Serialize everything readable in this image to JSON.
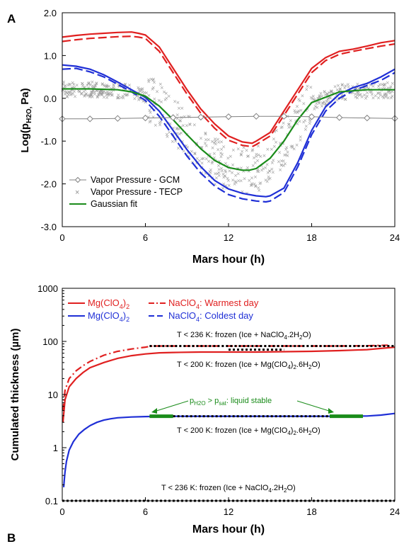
{
  "chart_data": [
    {
      "panel": "A",
      "type": "line",
      "xlabel": "Mars hour (h)",
      "ylabel_main": "Log(p",
      "ylabel_sub": "H2O, ",
      "ylabel_end": "Pa)",
      "xlim": [
        0,
        24
      ],
      "ylim": [
        -3,
        2
      ],
      "xticks": [
        0,
        6,
        12,
        18,
        24
      ],
      "yticks": [
        2,
        1,
        0,
        -1,
        -2,
        -3
      ],
      "ytick_labels": [
        "2.0",
        "1.0",
        "0.0",
        "-1.0",
        "-2.0",
        "-3.0"
      ],
      "legend": [
        "Vapor Pressure - GCM",
        "Vapor Pressure - TECP",
        "Gaussian fit"
      ],
      "series": [
        {
          "color": "#e02020",
          "dash": "solid",
          "x": [
            0,
            1,
            2,
            3,
            4,
            5,
            5.5,
            6,
            7,
            8,
            9,
            10,
            11,
            12,
            13,
            13.7,
            14,
            15,
            16,
            17,
            18,
            19,
            20,
            21,
            22,
            23,
            24
          ],
          "y": [
            1.43,
            1.47,
            1.5,
            1.52,
            1.54,
            1.55,
            1.52,
            1.48,
            1.2,
            0.7,
            0.2,
            -0.25,
            -0.6,
            -0.88,
            -1.02,
            -1.05,
            -1.0,
            -0.8,
            -0.3,
            0.2,
            0.7,
            0.95,
            1.1,
            1.15,
            1.22,
            1.3,
            1.35
          ]
        },
        {
          "color": "#e02020",
          "dash": "dashed",
          "x": [
            0,
            1,
            2,
            3,
            4,
            5,
            5.5,
            6,
            7,
            8,
            9,
            10,
            11,
            12,
            13,
            13.7,
            14,
            15,
            16,
            17,
            18,
            19,
            20,
            21,
            22,
            23,
            24
          ],
          "y": [
            1.33,
            1.37,
            1.4,
            1.42,
            1.44,
            1.45,
            1.43,
            1.4,
            1.1,
            0.6,
            0.1,
            -0.35,
            -0.7,
            -0.98,
            -1.1,
            -1.13,
            -1.08,
            -0.88,
            -0.4,
            0.1,
            0.6,
            0.88,
            1.03,
            1.1,
            1.16,
            1.22,
            1.27
          ]
        },
        {
          "color": "#1f2fd6",
          "dash": "solid",
          "x": [
            0,
            1,
            2,
            3,
            4,
            5,
            6,
            7,
            8,
            9,
            10,
            11,
            12,
            13,
            14,
            14.7,
            15,
            16,
            17,
            18,
            19,
            20,
            21,
            22,
            23,
            24
          ],
          "y": [
            0.78,
            0.75,
            0.68,
            0.55,
            0.38,
            0.2,
            0.02,
            -0.3,
            -0.75,
            -1.2,
            -1.6,
            -1.92,
            -2.12,
            -2.22,
            -2.28,
            -2.3,
            -2.28,
            -2.1,
            -1.5,
            -0.75,
            -0.2,
            0.1,
            0.25,
            0.35,
            0.5,
            0.68
          ]
        },
        {
          "color": "#1f2fd6",
          "dash": "dashed",
          "x": [
            0,
            1,
            2,
            3,
            4,
            5,
            6,
            7,
            8,
            9,
            10,
            11,
            12,
            13,
            14,
            14.7,
            15,
            16,
            17,
            18,
            19,
            20,
            21,
            22,
            23,
            24
          ],
          "y": [
            0.68,
            0.7,
            0.62,
            0.5,
            0.33,
            0.15,
            -0.05,
            -0.42,
            -0.88,
            -1.35,
            -1.75,
            -2.05,
            -2.25,
            -2.35,
            -2.4,
            -2.42,
            -2.4,
            -2.2,
            -1.6,
            -0.85,
            -0.3,
            0.0,
            0.18,
            0.3,
            0.42,
            0.6
          ]
        },
        {
          "color": "#1a8c1a",
          "dash": "solid",
          "x": [
            0,
            2,
            4,
            5,
            6,
            7,
            8,
            9,
            10,
            11,
            12,
            13,
            13.5,
            14,
            15,
            16,
            17,
            18,
            20,
            22,
            24
          ],
          "y": [
            0.22,
            0.22,
            0.2,
            0.15,
            0.05,
            -0.18,
            -0.5,
            -0.85,
            -1.18,
            -1.45,
            -1.62,
            -1.68,
            -1.68,
            -1.64,
            -1.4,
            -1.0,
            -0.5,
            -0.1,
            0.15,
            0.2,
            0.2
          ]
        },
        {
          "color": "#808080",
          "dash": "solid",
          "marker": "diamond",
          "x": [
            0,
            2,
            4,
            6,
            8,
            10,
            12,
            14,
            16,
            18,
            20,
            22,
            24
          ],
          "y": [
            -0.48,
            -0.48,
            -0.47,
            -0.46,
            -0.45,
            -0.44,
            -0.43,
            -0.42,
            -0.42,
            -0.43,
            -0.45,
            -0.46,
            -0.47
          ]
        }
      ]
    },
    {
      "panel": "B",
      "type": "line",
      "xlabel": "Mars hour (h)",
      "ylabel": "Cumulated thickness (µm)",
      "yscale": "log",
      "xlim": [
        0,
        24
      ],
      "ylim": [
        0.1,
        1000
      ],
      "xticks": [
        0,
        6,
        12,
        18,
        24
      ],
      "yticks": [
        1000,
        100,
        10,
        1,
        0.1
      ],
      "ytick_labels": [
        "1000",
        "100",
        "10",
        "1",
        "0.1"
      ],
      "series": [
        {
          "color": "#e02020",
          "dash": "solid",
          "x": [
            0.05,
            0.2,
            0.5,
            1,
            1.5,
            2,
            3,
            4,
            5,
            6,
            7,
            8,
            10,
            12,
            14,
            16,
            18,
            20,
            22,
            24
          ],
          "y": [
            3,
            8,
            14,
            20,
            26,
            32,
            40,
            48,
            54,
            58,
            61,
            62,
            63,
            63,
            63,
            64,
            65,
            67,
            70,
            78
          ]
        },
        {
          "color": "#e02020",
          "dash": "dashdot",
          "x": [
            0.05,
            0.2,
            0.5,
            1,
            1.5,
            2,
            3,
            4,
            5,
            6,
            6.5,
            8,
            10,
            12,
            14,
            16,
            18,
            20,
            22,
            23.5
          ],
          "y": [
            5,
            12,
            20,
            28,
            35,
            42,
            55,
            65,
            72,
            78,
            82,
            82,
            82,
            82,
            82,
            82,
            82,
            82,
            83,
            85
          ]
        },
        {
          "color": "#1f2fd6",
          "dash": "solid",
          "x": [
            0.1,
            0.15,
            0.2,
            0.3,
            0.5,
            0.8,
            1.2,
            1.6,
            2,
            2.5,
            3,
            3.5,
            4,
            5,
            6,
            7,
            8,
            10,
            12,
            14,
            16,
            18,
            20,
            22,
            23,
            24
          ],
          "y": [
            0.18,
            0.25,
            0.35,
            0.55,
            0.9,
            1.3,
            1.8,
            2.2,
            2.6,
            3.0,
            3.3,
            3.5,
            3.65,
            3.78,
            3.85,
            3.88,
            3.9,
            3.9,
            3.9,
            3.9,
            3.9,
            3.9,
            3.9,
            3.95,
            4.1,
            4.4
          ]
        }
      ],
      "frozen_bars": [
        {
          "y": 82,
          "x": [
            6.3,
            24
          ]
        },
        {
          "y": 0.1,
          "x": [
            0,
            24
          ]
        }
      ],
      "frozen_mid_bar": {
        "y": 70,
        "x": [
          12,
          16
        ]
      },
      "stable_segments": [
        {
          "y": 3.9,
          "x": [
            6.3,
            8
          ]
        },
        {
          "y": 3.9,
          "x": [
            19.3,
            21.7
          ]
        }
      ],
      "frozen_dotted_blue": {
        "y": 3.9,
        "x": [
          8,
          19.3
        ]
      },
      "legend": {
        "mg": "Mg(ClO",
        "mg_sub": "4",
        "mg_end": ")",
        "mg_sub2": "2",
        "na": "NaClO",
        "na_sub": "4",
        "warm": ": Warmest day",
        "cold": ": Coldest day"
      },
      "annotations": {
        "t236_top_a": "T < 236 K: frozen (Ice + NaClO",
        "t236_top_b": "4",
        "t236_top_c": ".2H",
        "t236_top_d": "2",
        "t236_top_e": "O)",
        "t200_top_a": "T < 200 K: frozen (Ice + Mg(ClO",
        "t200_top_b": "4",
        "t200_top_c": ")",
        "t200_top_d": "2",
        "t200_top_e": ".6H",
        "t200_top_f": "2",
        "t200_top_g": "O)",
        "stable_a": "p",
        "stable_b": "H2O",
        "stable_c": " > p",
        "stable_d": "sat",
        "stable_e": ": liquid stable",
        "t236_bot_a": "T < 236 K: frozen (Ice + NaClO",
        "t236_bot_b": "4",
        "t236_bot_c": ".2H",
        "t236_bot_d": "2",
        "t236_bot_e": "O)"
      }
    }
  ],
  "panel_labels": [
    "A",
    "B"
  ],
  "colors": {
    "red": "#e02020",
    "blue": "#1f2fd6",
    "green": "#1a8c1a",
    "gray": "#808080"
  }
}
